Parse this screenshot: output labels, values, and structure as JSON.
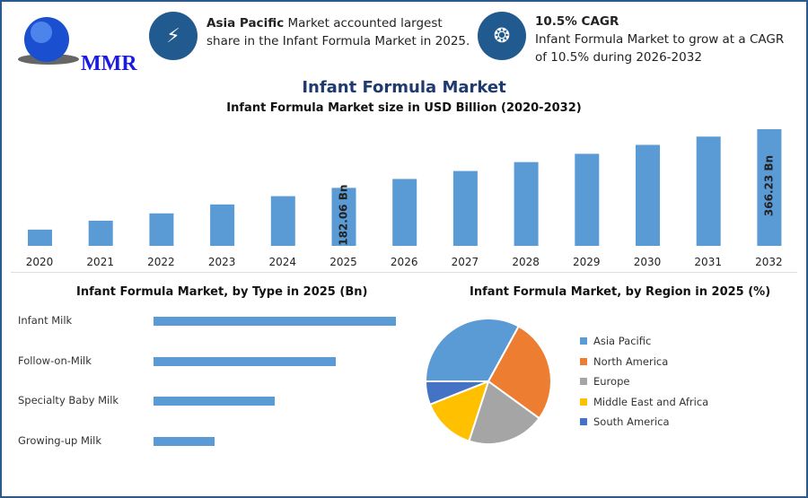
{
  "brand": {
    "logo_text": "MMR"
  },
  "highlights": [
    {
      "icon": "lightning-icon",
      "bold": "Asia Pacific",
      "text": " Market accounted largest share in the Infant Formula Market in 2025."
    },
    {
      "icon": "flame-drop-icon",
      "bold": "10.5% CAGR",
      "text": "Infant Formula Market to grow at a CAGR of 10.5% during 2026-2032"
    }
  ],
  "main_title": "Infant Formula Market",
  "colors": {
    "bar": "#5b9bd5",
    "title": "#1f3a6e",
    "frame": "#2a5b8c"
  },
  "chart_data": [
    {
      "type": "bar",
      "title": "Infant Formula Market size in USD Billion (2020-2032)",
      "categories": [
        "2020",
        "2021",
        "2022",
        "2023",
        "2024",
        "2025",
        "2026",
        "2027",
        "2028",
        "2029",
        "2030",
        "2031",
        "2032"
      ],
      "values": [
        51,
        79,
        102,
        130,
        156,
        182.06,
        210,
        235,
        263,
        289,
        317,
        343,
        366.23
      ],
      "data_labels": {
        "2025": "182.06 Bn",
        "2032": "366.23 Bn"
      },
      "grid": false
    },
    {
      "type": "bar",
      "orientation": "horizontal",
      "title": "Infant Formula Market, by Type in 2025 (Bn)",
      "categories": [
        "Infant Milk",
        "Follow-on-Milk",
        "Specialty Baby Milk",
        "Growing-up Milk"
      ],
      "values": [
        4,
        3,
        2,
        1
      ]
    },
    {
      "type": "pie",
      "title": "Infant Formula Market, by Region in 2025 (%)",
      "categories": [
        "Asia Pacific",
        "North America",
        "Europe",
        "Middle East and Africa",
        "South America"
      ],
      "values": [
        33,
        27,
        20,
        14,
        6
      ],
      "colors": [
        "#5b9bd5",
        "#ed7d31",
        "#a5a5a5",
        "#ffc000",
        "#4472c4"
      ],
      "legend": "right"
    }
  ]
}
